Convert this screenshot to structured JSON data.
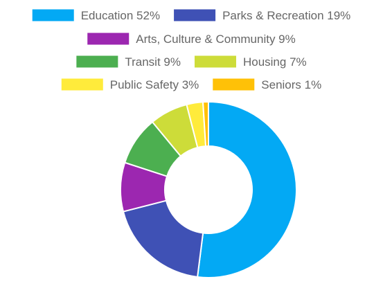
{
  "chart_data": {
    "type": "doughnut",
    "legend": {
      "position": "top",
      "layout": "centered-rows",
      "rows": [
        [
          0,
          1
        ],
        [
          2
        ],
        [
          3,
          4
        ],
        [
          5,
          6
        ]
      ]
    },
    "slices": [
      {
        "label": "Education 52%",
        "category": "Education",
        "value": 52,
        "color": "#03A9F4"
      },
      {
        "label": "Parks & Recreation 19%",
        "category": "Parks & Recreation",
        "value": 19,
        "color": "#3F51B5"
      },
      {
        "label": "Arts, Culture & Community 9%",
        "category": "Arts, Culture & Community",
        "value": 9,
        "color": "#9C27B0"
      },
      {
        "label": "Transit 9%",
        "category": "Transit",
        "value": 9,
        "color": "#4CAF50"
      },
      {
        "label": "Housing 7%",
        "category": "Housing",
        "value": 7,
        "color": "#CDDC39"
      },
      {
        "label": "Public Safety 3%",
        "category": "Public Safety",
        "value": 3,
        "color": "#FFEB3B"
      },
      {
        "label": "Seniors 1%",
        "category": "Seniors",
        "value": 1,
        "color": "#FFC107"
      }
    ],
    "start_angle": "top",
    "direction": "clockwise"
  }
}
